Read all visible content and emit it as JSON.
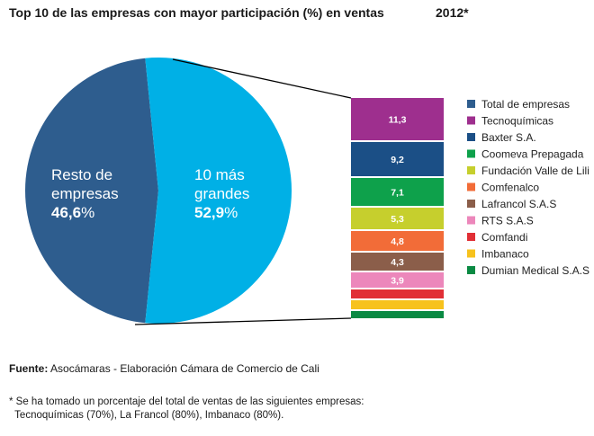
{
  "header": {
    "title": "Top 10 de las empresas con mayor participación (%) en ventas",
    "year": "2012*"
  },
  "chart_data": [
    {
      "type": "pie",
      "slices": [
        {
          "label_line1": "Resto de",
          "label_line2": "empresas",
          "value": 46.6,
          "value_label": "46,6",
          "color": "#2e5d8e"
        },
        {
          "label_line1": "10 más",
          "label_line2": "grandes",
          "value": 52.9,
          "value_label": "52,9",
          "color": "#00b0e6"
        }
      ],
      "percent_sign": "%"
    },
    {
      "type": "bar",
      "stacked": true,
      "categories": [
        "Tecnoquímicas",
        "Baxter S.A.",
        "Coomeva Prepagada",
        "Fundación Valle de Lili",
        "Comfenalco",
        "Lafrancol S.A.S",
        "RTS S.A.S",
        "Comfandi",
        "Imbanaco",
        "Dumian Medical S.A.S"
      ],
      "values": [
        11.3,
        9.2,
        7.1,
        5.3,
        4.8,
        4.3,
        3.9,
        null,
        null,
        null
      ],
      "value_labels": [
        "11,3",
        "9,2",
        "7,1",
        "5,3",
        "4,8",
        "4,3",
        "3,9",
        "",
        "",
        ""
      ],
      "colors": [
        "#9e2f8e",
        "#1b4f86",
        "#0ea14b",
        "#c6cf2d",
        "#f26c38",
        "#8b5e4a",
        "#ec87bb",
        "#e12f36",
        "#f7c21d",
        "#0a8a43"
      ]
    }
  ],
  "legend": [
    {
      "label": "Total de empresas",
      "color": "#2e5d8e"
    },
    {
      "label": "Tecnoquímicas",
      "color": "#9e2f8e"
    },
    {
      "label": "Baxter S.A.",
      "color": "#1b4f86"
    },
    {
      "label": "Coomeva Prepagada",
      "color": "#0ea14b"
    },
    {
      "label": "Fundación Valle de Lili",
      "color": "#c6cf2d"
    },
    {
      "label": "Comfenalco",
      "color": "#f26c38"
    },
    {
      "label": "Lafrancol S.A.S",
      "color": "#8b5e4a"
    },
    {
      "label": "RTS S.A.S",
      "color": "#ec87bb"
    },
    {
      "label": "Comfandi",
      "color": "#e12f36"
    },
    {
      "label": "Imbanaco",
      "color": "#f7c21d"
    },
    {
      "label": "Dumian Medical S.A.S",
      "color": "#0a8a43"
    }
  ],
  "footer": {
    "source_label": "Fuente:",
    "source_text": " Asocámaras -  Elaboración Cámara de Comercio de Cali",
    "note_line1": "* Se ha tomado un porcentaje del total de ventas de las siguientes empresas:",
    "note_line2": "  Tecnoquímicas (70%), La Francol (80%), Imbanaco (80%)."
  }
}
